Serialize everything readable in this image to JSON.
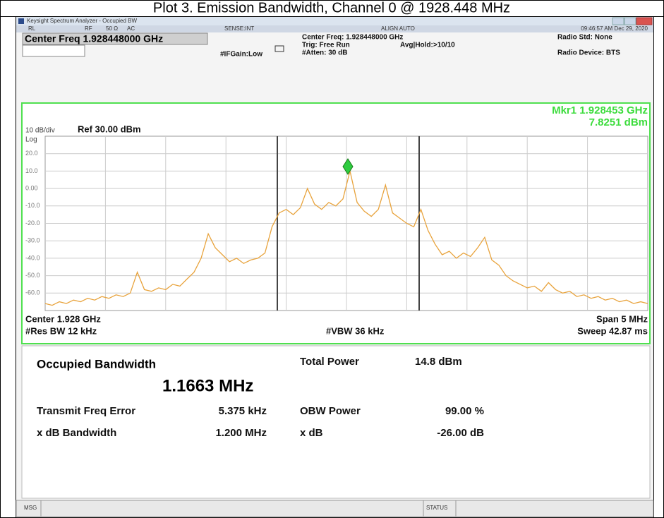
{
  "header": {
    "title": "Plot 3. Emission Bandwidth, Channel 0 @ 1928.448 MHz"
  },
  "window": {
    "title": "Keysight Spectrum Analyzer - Occupied BW"
  },
  "status_row": {
    "rl": "RL",
    "rf": "RF",
    "impedance": "50 Ω",
    "coupling": "AC",
    "sense": "SENSE:INT",
    "align": "ALIGN AUTO",
    "time": "09:46:57 AM Dec 29, 2020"
  },
  "settings": {
    "center_freq": "Center Freq 1.928448000 GHz",
    "if_gain": "#IFGain:Low",
    "center_freq_info": "Center Freq: 1.928448000 GHz",
    "trig": "Trig: Free Run",
    "atten": "#Atten: 30 dB",
    "avg_hold": "Avg|Hold:>10/10",
    "radio_std": "Radio Std: None",
    "radio_device": "Radio Device: BTS"
  },
  "chart_data": {
    "type": "line",
    "marker_freq": "Mkr1  1.928453 GHz",
    "marker_level": "7.8251 dBm",
    "scale_label": "10 dB/div",
    "ref_label": "Ref 30.00 dBm",
    "log_label": "Log",
    "ylim": [
      -70,
      30
    ],
    "yticks": [
      {
        "value": 20,
        "label": "20.0"
      },
      {
        "value": 10,
        "label": "10.0"
      },
      {
        "value": 0,
        "label": "0.00"
      },
      {
        "value": -10,
        "label": "-10.0"
      },
      {
        "value": -20,
        "label": "-20.0"
      },
      {
        "value": -30,
        "label": "-30.0"
      },
      {
        "value": -40,
        "label": "-40.0"
      },
      {
        "value": -50,
        "label": "-50.0"
      },
      {
        "value": -60,
        "label": "-60.0"
      }
    ],
    "grid": true,
    "color": "#e8a33c",
    "values": [
      -66,
      -67,
      -65,
      -66,
      -64,
      -65,
      -63,
      -64,
      -62,
      -63,
      -61,
      -62,
      -60,
      -48,
      -58,
      -59,
      -57,
      -58,
      -55,
      -56,
      -52,
      -48,
      -40,
      -26,
      -34,
      -38,
      -42,
      -40,
      -43,
      -41,
      -40,
      -37,
      -22,
      -14,
      -12,
      -15,
      -11,
      0,
      -9,
      -12,
      -8,
      -10,
      -6,
      10,
      -8,
      -13,
      -16,
      -12,
      2,
      -14,
      -17,
      -20,
      -22,
      -12,
      -24,
      -32,
      -38,
      -36,
      -40,
      -37,
      -39,
      -34,
      -28,
      -41,
      -44,
      -50,
      -53,
      -55,
      -57,
      -56,
      -59,
      -54,
      -58,
      -60,
      -59,
      -62,
      -61,
      -63,
      -62,
      -64,
      -63,
      -65,
      -64,
      -66,
      -65,
      -66
    ],
    "center_label": "Center  1.928 GHz",
    "res_bw": "#Res BW  12 kHz",
    "vbw": "#VBW  36 kHz",
    "span": "Span 5 MHz",
    "sweep": "Sweep  42.87 ms"
  },
  "results": {
    "obw_label": "Occupied Bandwidth",
    "obw_value": "1.1663 MHz",
    "total_power_label": "Total Power",
    "total_power_value": "14.8 dBm",
    "freq_error_label": "Transmit Freq Error",
    "freq_error_value": "5.375 kHz",
    "obw_power_label": "OBW Power",
    "obw_power_value": "99.00 %",
    "xdb_bw_label": "x dB Bandwidth",
    "xdb_bw_value": "1.200 MHz",
    "xdb_label": "x dB",
    "xdb_value": "-26.00 dB"
  },
  "statusbar": {
    "msg": "MSG",
    "status": "STATUS"
  }
}
